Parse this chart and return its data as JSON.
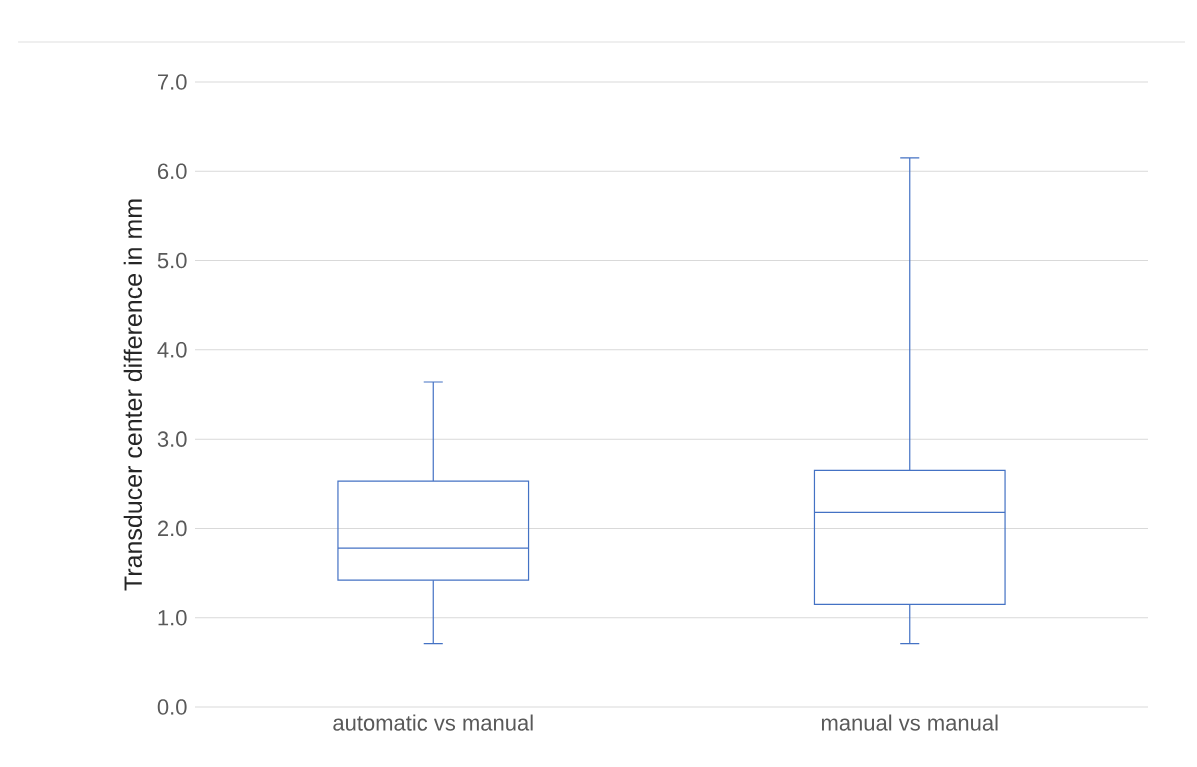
{
  "chart_data": {
    "type": "box",
    "ylabel": "Transducer center difference in mm",
    "categories": [
      "automatic vs manual",
      "manual vs manual"
    ],
    "color": "#4472c4",
    "boxes": [
      {
        "low": 0.71,
        "q1": 1.42,
        "median": 1.78,
        "q3": 2.53,
        "high": 3.64
      },
      {
        "low": 0.71,
        "q1": 1.15,
        "median": 2.18,
        "q3": 2.65,
        "high": 6.15
      }
    ],
    "ylim": [
      0,
      7
    ],
    "yticks": [
      {
        "value": 0,
        "label": "0.0"
      },
      {
        "value": 1,
        "label": "1.0"
      },
      {
        "value": 2,
        "label": "2.0"
      },
      {
        "value": 3,
        "label": "3.0"
      },
      {
        "value": 4,
        "label": "4.0"
      },
      {
        "value": 5,
        "label": "5.0"
      },
      {
        "value": 6,
        "label": "6.0"
      },
      {
        "value": 7,
        "label": "7.0"
      }
    ],
    "grid": "y"
  }
}
